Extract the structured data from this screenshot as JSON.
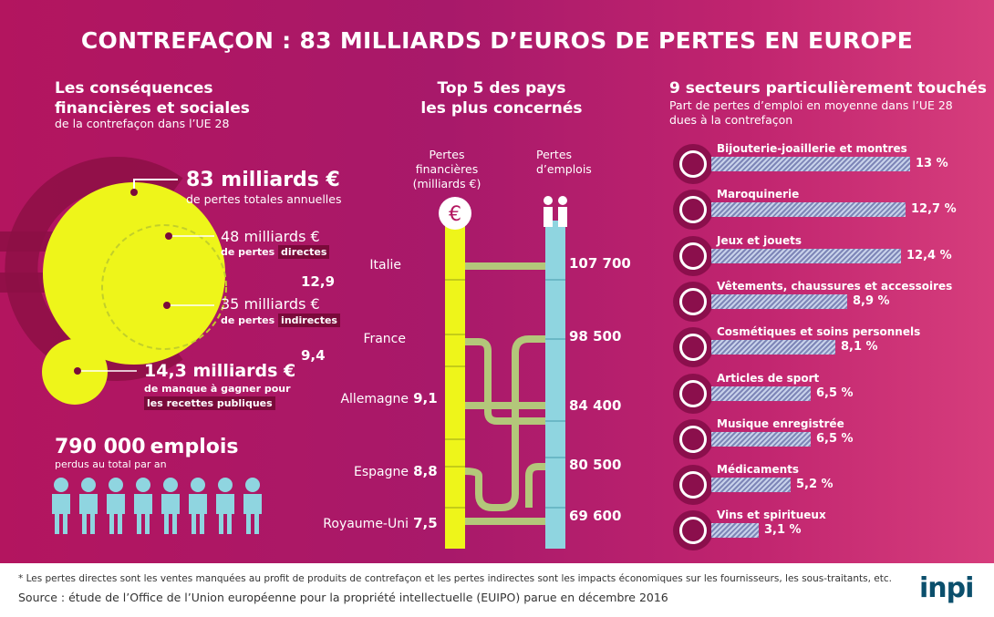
{
  "title": "CONTREFAÇON : 83 MILLIARDS D’EUROS DE PERTES EN EUROPE",
  "left": {
    "heading_line1": "Les conséquences",
    "heading_line2": "financières et sociales",
    "subheading": "de la contrefaçon dans l’UE 28",
    "total_value": "83 milliards €",
    "total_desc": "de pertes totales annuelles",
    "direct_value": "48 milliards €",
    "direct_desc_prefix": "de pertes",
    "direct_desc_hl": "directes",
    "indirect_value": "35 milliards €",
    "indirect_desc_prefix": "de pertes",
    "indirect_desc_hl": "indirectes",
    "public_value": "14,3 milliards €",
    "public_desc_line1": "de manque à gagner pour",
    "public_desc_hl": "les recettes publiques",
    "jobs_number": "790 000",
    "jobs_word": "emplois",
    "jobs_desc": "perdus au total par an"
  },
  "middle": {
    "heading_line1": "Top 5 des pays",
    "heading_line2": "les plus concernés",
    "col1_line1": "Pertes",
    "col1_line2": "financières",
    "col1_line3": "(milliards €)",
    "col2_line1": "Pertes",
    "col2_line2": "d’emplois",
    "countries": [
      {
        "name": "Italie",
        "financial": "12,9",
        "jobs": "107 700"
      },
      {
        "name": "France",
        "financial": "9,4",
        "jobs": "98 500"
      },
      {
        "name": "Allemagne",
        "financial": "9,1",
        "jobs": "84 400"
      },
      {
        "name": "Espagne",
        "financial": "8,8",
        "jobs": "80 500"
      },
      {
        "name": "Royaume-Uni",
        "financial": "7,5",
        "jobs": "69 600"
      }
    ]
  },
  "right": {
    "heading": "9 secteurs particulièrement touchés",
    "sub_line1": "Part de pertes d’emploi en moyenne dans l’UE 28",
    "sub_line2": "dues à la contrefaçon",
    "sectors": [
      {
        "label": "Bijouterie-joaillerie et montres",
        "pct_label": "13 %",
        "value": 13,
        "icon": "ring-icon"
      },
      {
        "label": "Maroquinerie",
        "pct_label": "12,7 %",
        "value": 12.7,
        "icon": "handbag-icon"
      },
      {
        "label": "Jeux et jouets",
        "pct_label": "12,4 %",
        "value": 12.4,
        "icon": "scooter-icon"
      },
      {
        "label": "Vêtements, chaussures et accessoires",
        "pct_label": "8,9 %",
        "value": 8.9,
        "icon": "shoe-icon"
      },
      {
        "label": "Cosmétiques et soins personnels",
        "pct_label": "8,1 %",
        "value": 8.1,
        "icon": "lips-icon"
      },
      {
        "label": "Articles de sport",
        "pct_label": "6,5 %",
        "value": 6.5,
        "icon": "tshirt-icon"
      },
      {
        "label": "Musique enregistrée",
        "pct_label": "6,5 %",
        "value": 6.5,
        "icon": "disc-icon"
      },
      {
        "label": "Médicaments",
        "pct_label": "5,2 %",
        "value": 5.2,
        "icon": "pill-icon"
      },
      {
        "label": "Vins et spiritueux",
        "pct_label": "3,1 %",
        "value": 3.1,
        "icon": "bottle-icon"
      }
    ]
  },
  "footer": {
    "note": "* Les pertes directes sont les ventes manquées au profit de produits de contrefaçon et les pertes indirectes sont les impacts économiques sur les fournisseurs, les sous-traitants, etc.",
    "source": "Source : étude de l’Office de l’Union européenne pour la propriété intellectuelle (EUIPO) parue en décembre 2016",
    "logo": "inpi"
  },
  "colors": {
    "accent_yellow": "#eef51a",
    "accent_cyan": "#8fd5e0",
    "bar_blue": "#7e86b8"
  }
}
